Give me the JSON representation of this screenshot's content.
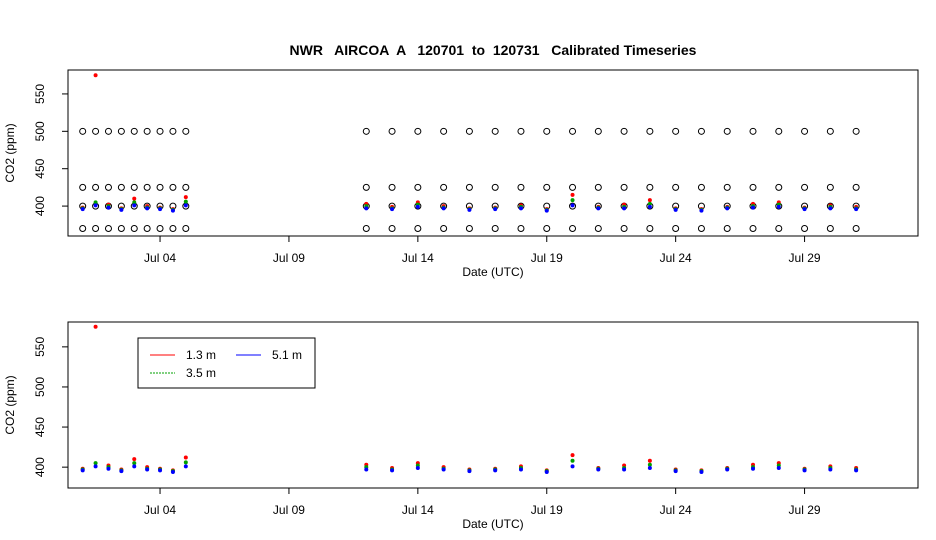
{
  "chart_data": [
    {
      "type": "scatter",
      "title": "NWR   AIRCOA  A   120701  to  120731   Calibrated Timeseries",
      "xlabel": "Date (UTC)",
      "ylabel": "CO2 (ppm)",
      "x": [
        1.0,
        1.5,
        2.0,
        2.5,
        3.0,
        3.5,
        4.0,
        4.5,
        5.0,
        12,
        13,
        14,
        15,
        16,
        17,
        18,
        19,
        20,
        21,
        22,
        23,
        24,
        25,
        26,
        27,
        28,
        29,
        30,
        31
      ],
      "xlim": [
        0.43,
        33.4
      ],
      "xticks": [
        {
          "value": 4,
          "label": "Jul 04"
        },
        {
          "value": 9,
          "label": "Jul 09"
        },
        {
          "value": 14,
          "label": "Jul 14"
        },
        {
          "value": 19,
          "label": "Jul 19"
        },
        {
          "value": 24,
          "label": "Jul 24"
        },
        {
          "value": 29,
          "label": "Jul 29"
        }
      ],
      "ylim": [
        360,
        582
      ],
      "yticks": [
        400,
        450,
        500,
        550
      ],
      "calibration_levels": [
        370,
        400,
        425,
        500
      ],
      "series": [
        {
          "name": "1.3 m",
          "color": "#ff0000",
          "values": [
            398,
            575,
            402,
            397,
            410,
            400,
            398,
            396,
            412,
            403,
            399,
            405,
            400,
            397,
            398,
            401,
            396,
            415,
            399,
            402,
            408,
            397,
            396,
            399,
            403,
            405,
            398,
            401,
            399
          ]
        },
        {
          "name": "3.5 m",
          "color": "#00a000",
          "values": [
            397,
            405,
            400,
            396,
            405,
            398,
            397,
            395,
            406,
            400,
            397,
            402,
            398,
            396,
            397,
            399,
            395,
            408,
            398,
            399,
            403,
            396,
            395,
            398,
            400,
            402,
            397,
            399,
            397
          ]
        },
        {
          "name": "5.1 m",
          "color": "#0000ff",
          "values": [
            396,
            401,
            398,
            395,
            401,
            397,
            396,
            394,
            401,
            397,
            396,
            399,
            397,
            395,
            396,
            397,
            394,
            401,
            397,
            397,
            399,
            395,
            394,
            397,
            398,
            399,
            396,
            397,
            396
          ]
        }
      ]
    },
    {
      "type": "scatter",
      "xlabel": "Date (UTC)",
      "ylabel": "CO2 (ppm)",
      "x": [
        1.0,
        1.5,
        2.0,
        2.5,
        3.0,
        3.5,
        4.0,
        4.5,
        5.0,
        12,
        13,
        14,
        15,
        16,
        17,
        18,
        19,
        20,
        21,
        22,
        23,
        24,
        25,
        26,
        27,
        28,
        29,
        30,
        31
      ],
      "xlim": [
        0.43,
        33.4
      ],
      "xticks": [
        {
          "value": 4,
          "label": "Jul 04"
        },
        {
          "value": 9,
          "label": "Jul 09"
        },
        {
          "value": 14,
          "label": "Jul 14"
        },
        {
          "value": 19,
          "label": "Jul 19"
        },
        {
          "value": 24,
          "label": "Jul 24"
        },
        {
          "value": 29,
          "label": "Jul 29"
        }
      ],
      "ylim": [
        374,
        581
      ],
      "yticks": [
        400,
        450,
        500,
        550
      ],
      "legend": "top-left",
      "series": [
        {
          "name": "1.3 m",
          "color": "#ff0000",
          "values": [
            398,
            575,
            402,
            397,
            410,
            400,
            398,
            396,
            412,
            403,
            399,
            405,
            400,
            397,
            398,
            401,
            396,
            415,
            399,
            402,
            408,
            397,
            396,
            399,
            403,
            405,
            398,
            401,
            399
          ]
        },
        {
          "name": "3.5 m",
          "color": "#00a000",
          "values": [
            397,
            405,
            400,
            396,
            405,
            398,
            397,
            395,
            406,
            400,
            397,
            402,
            398,
            396,
            397,
            399,
            395,
            408,
            398,
            399,
            403,
            396,
            395,
            398,
            400,
            402,
            397,
            399,
            397
          ]
        },
        {
          "name": "5.1 m",
          "color": "#0000ff",
          "values": [
            396,
            401,
            398,
            395,
            401,
            397,
            396,
            394,
            401,
            397,
            396,
            399,
            397,
            395,
            396,
            397,
            394,
            401,
            397,
            397,
            399,
            395,
            394,
            397,
            398,
            399,
            396,
            397,
            396
          ]
        }
      ]
    }
  ]
}
